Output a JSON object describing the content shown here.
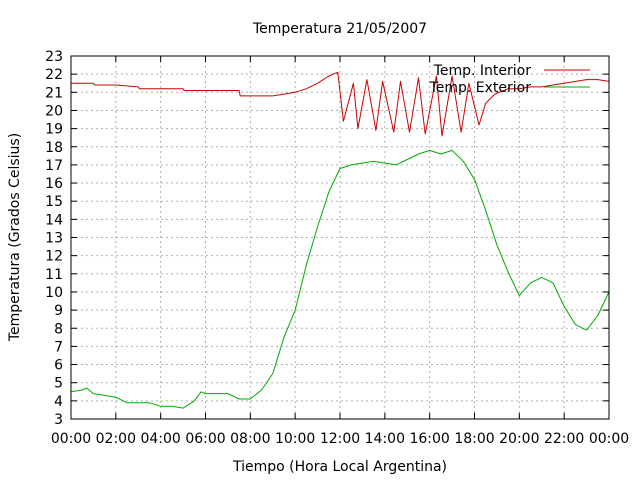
{
  "chart_data": {
    "type": "line",
    "title": "Temperatura 21/05/2007",
    "xlabel": "Tiempo (Hora Local Argentina)",
    "ylabel": "Temperatura (Grados Celsius)",
    "xlim": [
      0,
      24
    ],
    "ylim": [
      3,
      23
    ],
    "grid": true,
    "legend_position": "top-right",
    "x_ticks": [
      {
        "value": 0,
        "label": "00:00"
      },
      {
        "value": 2,
        "label": "02:00"
      },
      {
        "value": 4,
        "label": "04:00"
      },
      {
        "value": 6,
        "label": "06:00"
      },
      {
        "value": 8,
        "label": "08:00"
      },
      {
        "value": 10,
        "label": "10:00"
      },
      {
        "value": 12,
        "label": "12:00"
      },
      {
        "value": 14,
        "label": "14:00"
      },
      {
        "value": 16,
        "label": "16:00"
      },
      {
        "value": 18,
        "label": "18:00"
      },
      {
        "value": 20,
        "label": "20:00"
      },
      {
        "value": 22,
        "label": "22:00"
      },
      {
        "value": 24,
        "label": "00:00"
      }
    ],
    "y_ticks": [
      3,
      4,
      5,
      6,
      7,
      8,
      9,
      10,
      11,
      12,
      13,
      14,
      15,
      16,
      17,
      18,
      19,
      20,
      21,
      22,
      23
    ],
    "series": [
      {
        "name": "Temp. Interior",
        "color": "#cc0000",
        "x": [
          0,
          1,
          1.05,
          2,
          3,
          3.05,
          4,
          5,
          5.05,
          6,
          7,
          7.5,
          7.55,
          8,
          9,
          9.5,
          10,
          10.5,
          11,
          11.5,
          11.9,
          12.15,
          12.6,
          12.8,
          13.2,
          13.6,
          13.9,
          14.4,
          14.7,
          15.1,
          15.5,
          15.8,
          16.3,
          16.55,
          17.0,
          17.4,
          17.75,
          18.2,
          18.5,
          18.9,
          19.5,
          20,
          20.5,
          21,
          21.5,
          22,
          22.5,
          23,
          23.5,
          24
        ],
        "y": [
          21.5,
          21.5,
          21.4,
          21.4,
          21.3,
          21.2,
          21.2,
          21.2,
          21.1,
          21.1,
          21.1,
          21.1,
          20.8,
          20.8,
          20.8,
          20.9,
          21.0,
          21.2,
          21.5,
          21.9,
          22.1,
          19.4,
          21.5,
          19.0,
          21.7,
          18.9,
          21.6,
          18.8,
          21.6,
          18.8,
          21.8,
          18.7,
          21.9,
          18.6,
          21.9,
          18.8,
          21.5,
          19.2,
          20.4,
          20.9,
          21.2,
          21.2,
          21.3,
          21.3,
          21.4,
          21.5,
          21.6,
          21.7,
          21.7,
          21.6
        ]
      },
      {
        "name": "Temp. Exterior",
        "color": "#00aa00",
        "x": [
          0,
          0.5,
          0.7,
          1,
          1.5,
          2,
          2.5,
          3,
          3.5,
          4,
          4.5,
          5,
          5.5,
          5.8,
          6,
          6.5,
          7,
          7.5,
          8,
          8.5,
          9,
          9.5,
          10,
          10.5,
          11,
          11.5,
          12,
          12.5,
          13,
          13.5,
          14,
          14.5,
          15,
          15.5,
          16,
          16.5,
          17,
          17.5,
          18,
          18.5,
          19,
          19.5,
          20,
          20.5,
          21,
          21.5,
          22,
          22.5,
          23,
          23.5,
          24
        ],
        "y": [
          4.5,
          4.6,
          4.7,
          4.4,
          4.3,
          4.2,
          3.9,
          3.9,
          3.9,
          3.7,
          3.7,
          3.6,
          4.0,
          4.5,
          4.4,
          4.4,
          4.4,
          4.1,
          4.1,
          4.6,
          5.5,
          7.5,
          9.0,
          11.5,
          13.6,
          15.5,
          16.8,
          17.0,
          17.1,
          17.2,
          17.1,
          17.0,
          17.3,
          17.6,
          17.8,
          17.6,
          17.8,
          17.2,
          16.2,
          14.5,
          12.6,
          11.1,
          9.8,
          10.5,
          10.8,
          10.5,
          9.2,
          8.2,
          7.9,
          8.7,
          10.0
        ]
      }
    ]
  }
}
